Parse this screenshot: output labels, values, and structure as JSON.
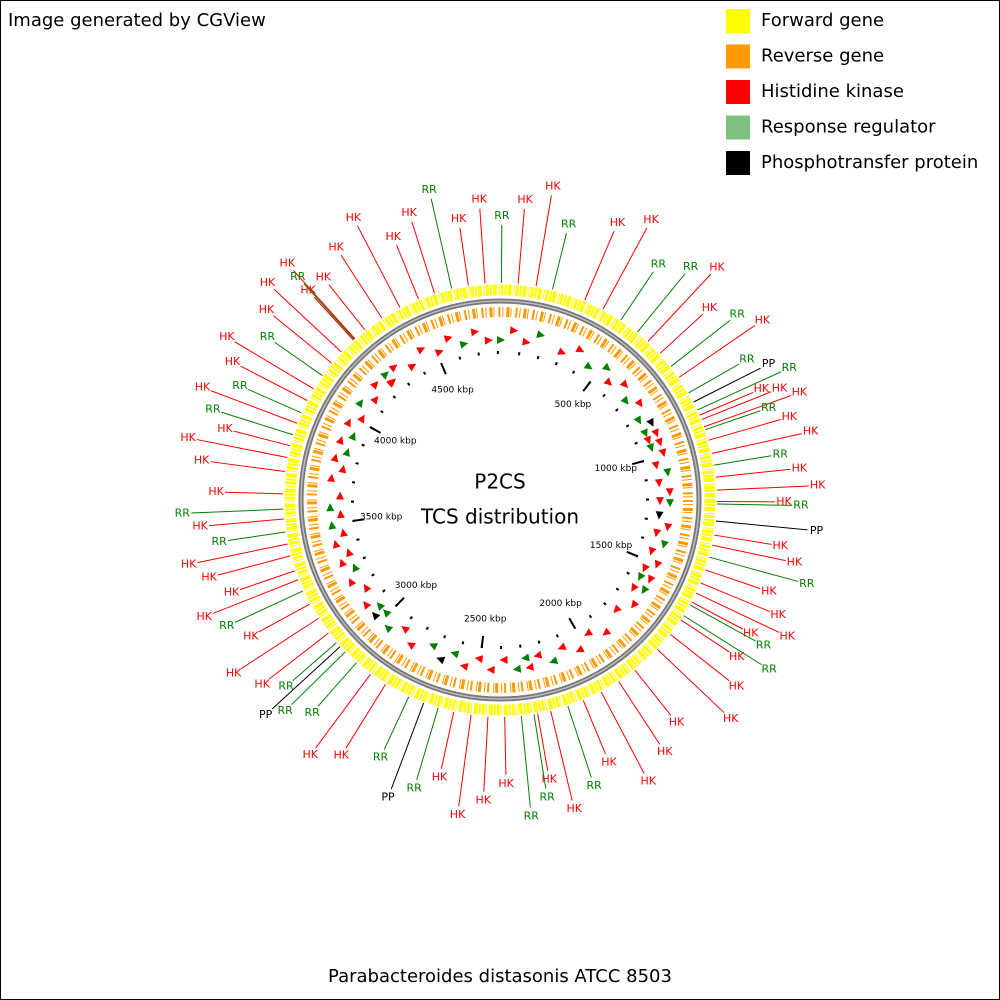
{
  "header": "Image generated by CGView",
  "legend": [
    {
      "label": "Forward gene",
      "color": "#ffff00"
    },
    {
      "label": "Reverse gene",
      "color": "#ff9900"
    },
    {
      "label": "Histidine kinase",
      "color": "#ff0000"
    },
    {
      "label": "Response regulator",
      "color": "#7fbf7f"
    },
    {
      "label": "Phosphotransfer protein",
      "color": "#000000"
    }
  ],
  "center": [
    "P2CS",
    "TCS distribution"
  ],
  "footer": "Parabacteroides distasonis ATCC 8503",
  "chart_data": {
    "type": "circular-map",
    "xlim": [
      0,
      4811
    ],
    "xticks": [
      {
        "value": 500,
        "label": "500 kbp"
      },
      {
        "value": 1000,
        "label": "1000 kbp"
      },
      {
        "value": 1500,
        "label": "1500 kbp"
      },
      {
        "value": 2000,
        "label": "2000 kbp"
      },
      {
        "value": 2500,
        "label": "2500 kbp"
      },
      {
        "value": 3000,
        "label": "3000 kbp"
      },
      {
        "value": 3500,
        "label": "3500 kbp"
      },
      {
        "value": 4000,
        "label": "4000 kbp"
      },
      {
        "value": 4500,
        "label": "4500 kbp"
      }
    ],
    "minor_tick_step": 100,
    "feature_colors": {
      "HK": "#ff0000",
      "RR": "#008000",
      "PP": "#000000"
    },
    "features": [
      {
        "label": "RR",
        "kbp": 5
      },
      {
        "label": "HK",
        "kbp": 64
      },
      {
        "label": "HK",
        "kbp": 128
      },
      {
        "label": "RR",
        "kbp": 187
      },
      {
        "label": "HK",
        "kbp": 307
      },
      {
        "label": "HK",
        "kbp": 379
      },
      {
        "label": "RR",
        "kbp": 453
      },
      {
        "label": "RR",
        "kbp": 525
      },
      {
        "label": "HK",
        "kbp": 575
      },
      {
        "label": "HK",
        "kbp": 635
      },
      {
        "label": "RR",
        "kbp": 695
      },
      {
        "label": "HK",
        "kbp": 743
      },
      {
        "label": "RR",
        "kbp": 807
      },
      {
        "label": "PP",
        "kbp": 844
      },
      {
        "label": "RR",
        "kbp": 875
      },
      {
        "label": "HK",
        "kbp": 895
      },
      {
        "label": "HK",
        "kbp": 912
      },
      {
        "label": "HK",
        "kbp": 939
      },
      {
        "label": "RR",
        "kbp": 950
      },
      {
        "label": "HK",
        "kbp": 989
      },
      {
        "label": "HK",
        "kbp": 1037
      },
      {
        "label": "RR",
        "kbp": 1079
      },
      {
        "label": "HK",
        "kbp": 1122
      },
      {
        "label": "HK",
        "kbp": 1168
      },
      {
        "label": "HK",
        "kbp": 1208
      },
      {
        "label": "RR",
        "kbp": 1217
      },
      {
        "label": "PP",
        "kbp": 1277
      },
      {
        "label": "HK",
        "kbp": 1327
      },
      {
        "label": "HK",
        "kbp": 1363
      },
      {
        "label": "RR",
        "kbp": 1407
      },
      {
        "label": "HK",
        "kbp": 1454
      },
      {
        "label": "HK",
        "kbp": 1503
      },
      {
        "label": "HK",
        "kbp": 1542
      },
      {
        "label": "HK",
        "kbp": 1577
      },
      {
        "label": "RR",
        "kbp": 1589
      },
      {
        "label": "RR",
        "kbp": 1633
      },
      {
        "label": "HK",
        "kbp": 1651
      },
      {
        "label": "HK",
        "kbp": 1714
      },
      {
        "label": "HK",
        "kbp": 1784
      },
      {
        "label": "HK",
        "kbp": 1892
      },
      {
        "label": "HK",
        "kbp": 1962
      },
      {
        "label": "HK",
        "kbp": 2034
      },
      {
        "label": "HK",
        "kbp": 2104
      },
      {
        "label": "RR",
        "kbp": 2162
      },
      {
        "label": "HK",
        "kbp": 2225
      },
      {
        "label": "HK",
        "kbp": 2272
      },
      {
        "label": "RR",
        "kbp": 2285
      },
      {
        "label": "RR",
        "kbp": 2330
      },
      {
        "label": "HK",
        "kbp": 2389
      },
      {
        "label": "HK",
        "kbp": 2448
      },
      {
        "label": "HK",
        "kbp": 2508
      },
      {
        "label": "HK",
        "kbp": 2570
      },
      {
        "label": "RR",
        "kbp": 2627
      },
      {
        "label": "PP",
        "kbp": 2681
      },
      {
        "label": "RR",
        "kbp": 2738
      },
      {
        "label": "HK",
        "kbp": 2831
      },
      {
        "label": "HK",
        "kbp": 2895
      },
      {
        "label": "RR",
        "kbp": 2959
      },
      {
        "label": "RR",
        "kbp": 3014
      },
      {
        "label": "PP",
        "kbp": 3040
      },
      {
        "label": "RR",
        "kbp": 3059
      },
      {
        "label": "HK",
        "kbp": 3103
      },
      {
        "label": "HK",
        "kbp": 3166
      },
      {
        "label": "HK",
        "kbp": 3225
      },
      {
        "label": "RR",
        "kbp": 3277
      },
      {
        "label": "HK",
        "kbp": 3320
      },
      {
        "label": "HK",
        "kbp": 3354
      },
      {
        "label": "HK",
        "kbp": 3409
      },
      {
        "label": "HK",
        "kbp": 3452
      },
      {
        "label": "RR",
        "kbp": 3495
      },
      {
        "label": "HK",
        "kbp": 3541
      },
      {
        "label": "RR",
        "kbp": 3576
      },
      {
        "label": "HK",
        "kbp": 3630
      },
      {
        "label": "HK",
        "kbp": 3709
      },
      {
        "label": "HK",
        "kbp": 3759
      },
      {
        "label": "HK",
        "kbp": 3802
      },
      {
        "label": "RR",
        "kbp": 3842
      },
      {
        "label": "HK",
        "kbp": 3885
      },
      {
        "label": "RR",
        "kbp": 3925
      },
      {
        "label": "HK",
        "kbp": 3973
      },
      {
        "label": "HK",
        "kbp": 4020
      },
      {
        "label": "RR",
        "kbp": 4076
      },
      {
        "label": "HK",
        "kbp": 4131
      },
      {
        "label": "HK",
        "kbp": 4183
      },
      {
        "label": "HK",
        "kbp": 4243
      },
      {
        "label": "RR",
        "kbp": 4247
      },
      {
        "label": "HK",
        "kbp": 4250
      },
      {
        "label": "HK",
        "kbp": 4297
      },
      {
        "label": "HK",
        "kbp": 4370
      },
      {
        "label": "HK",
        "kbp": 4444
      },
      {
        "label": "HK",
        "kbp": 4516
      },
      {
        "label": "HK",
        "kbp": 4576
      },
      {
        "label": "RR",
        "kbp": 4639
      },
      {
        "label": "HK",
        "kbp": 4699
      },
      {
        "label": "HK",
        "kbp": 4758
      }
    ]
  }
}
